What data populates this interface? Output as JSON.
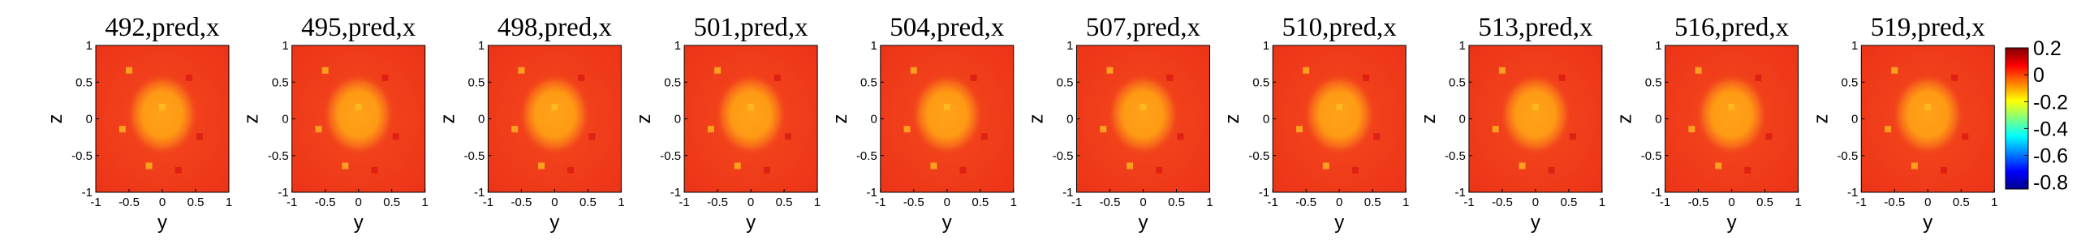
{
  "chart_data": {
    "type": "heatmap",
    "panels": [
      {
        "title": "492,pred,x"
      },
      {
        "title": "495,pred,x"
      },
      {
        "title": "498,pred,x"
      },
      {
        "title": "501,pred,x"
      },
      {
        "title": "504,pred,x"
      },
      {
        "title": "507,pred,x"
      },
      {
        "title": "510,pred,x"
      },
      {
        "title": "513,pred,x"
      },
      {
        "title": "516,pred,x"
      },
      {
        "title": "519,pred,x"
      }
    ],
    "xlabel": "y",
    "ylabel": "z",
    "xlim": [
      -1,
      1
    ],
    "ylim": [
      -1,
      1
    ],
    "xticks": [
      -1,
      -0.5,
      0,
      0.5,
      1
    ],
    "yticks": [
      -1,
      -0.5,
      0,
      0.5,
      1
    ],
    "colorbar": {
      "lim": [
        -0.85,
        0.2
      ],
      "ticks": [
        0.2,
        0,
        -0.2,
        -0.4,
        -0.6,
        -0.8
      ],
      "colormap": "jet"
    }
  }
}
